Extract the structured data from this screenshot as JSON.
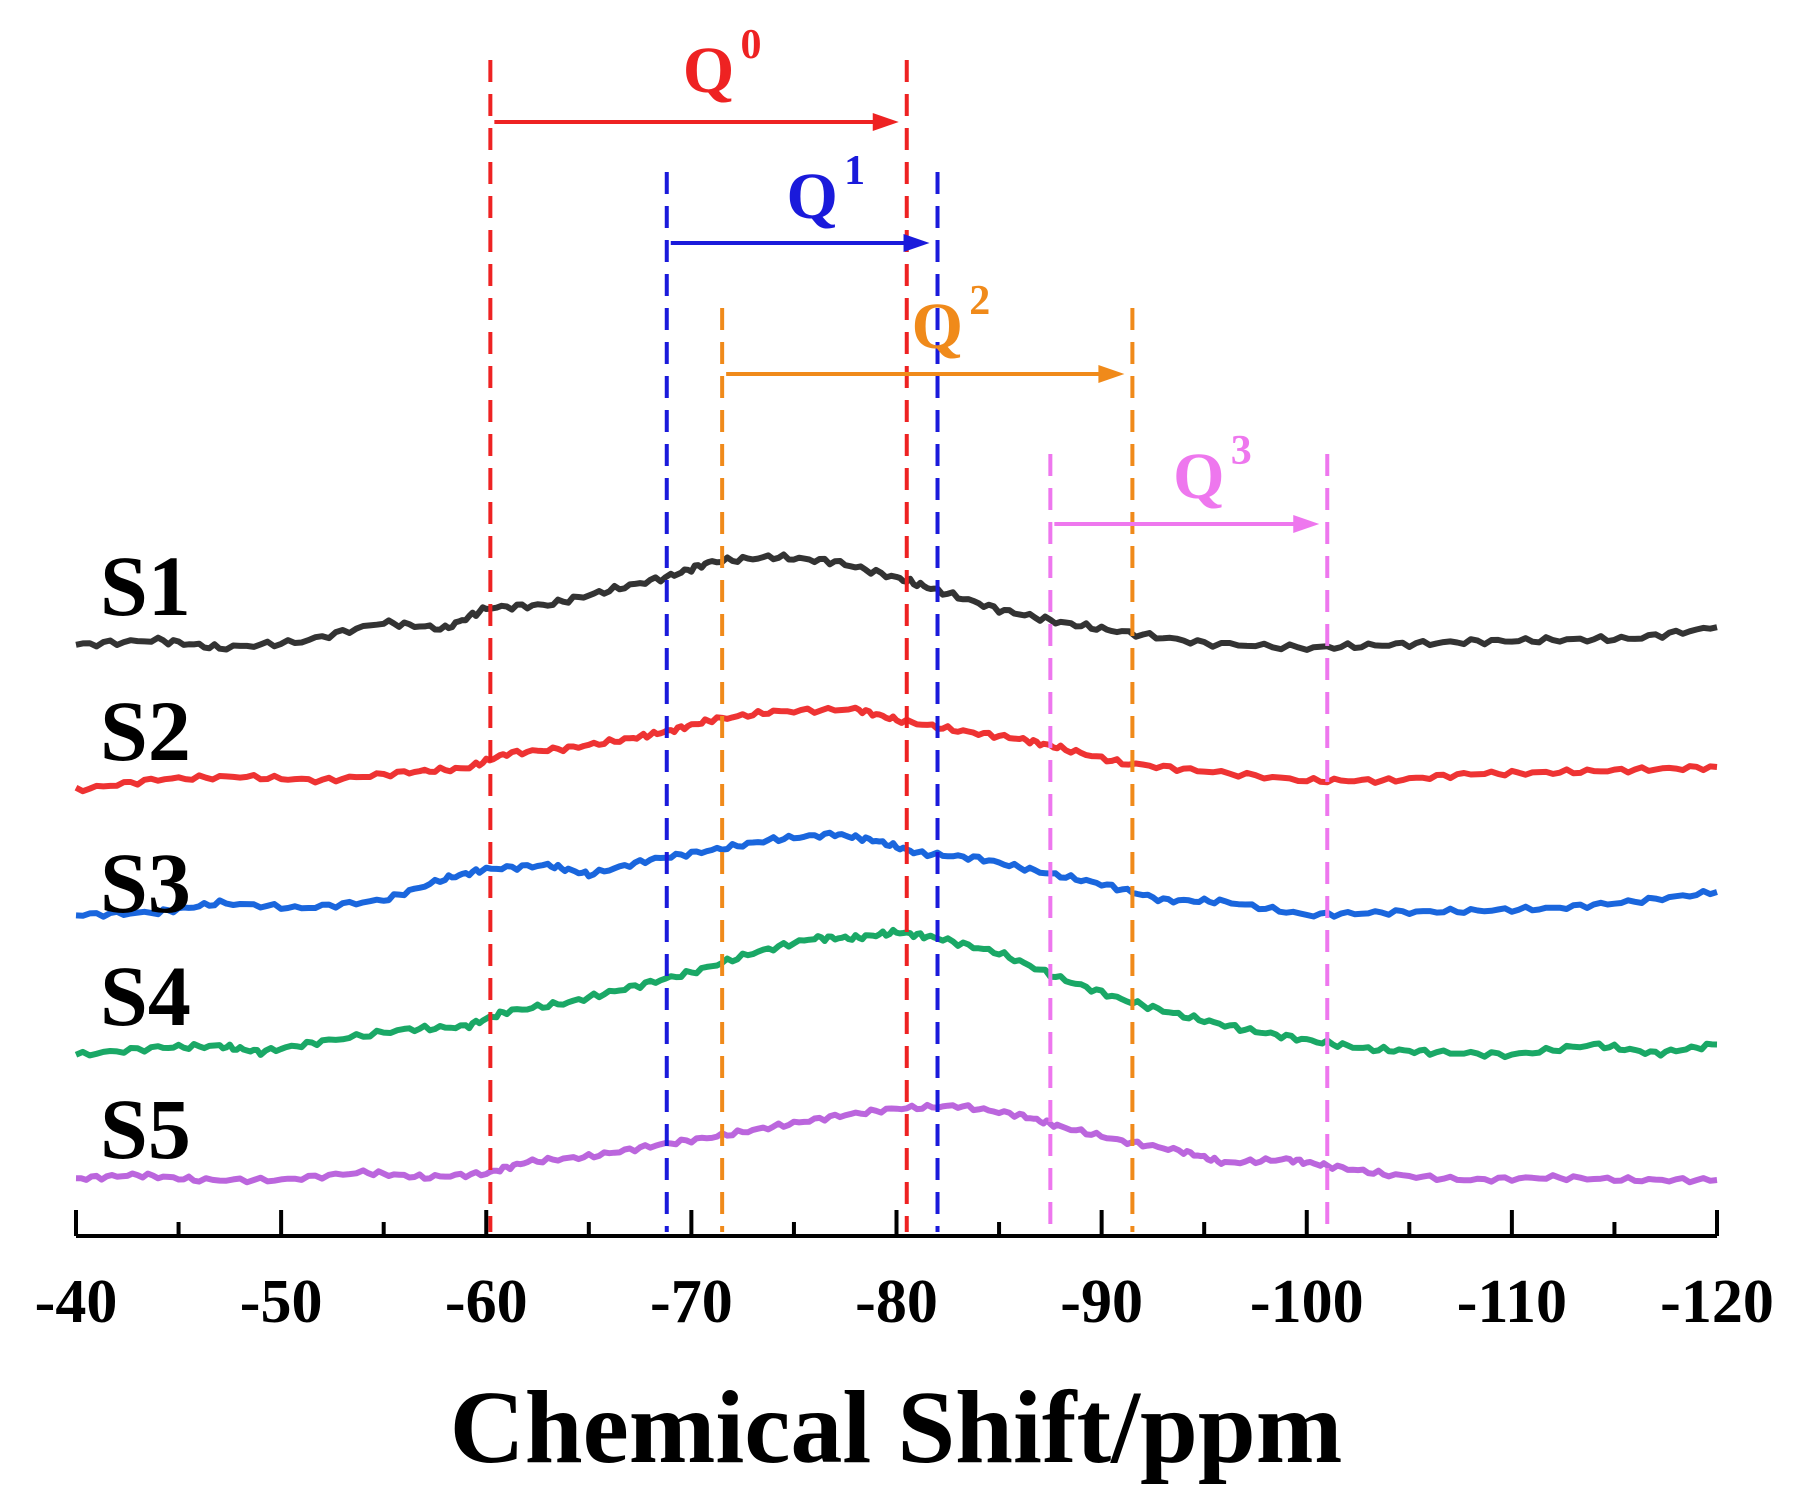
{
  "chart_data": {
    "type": "line",
    "xlabel": "Chemical Shift/ppm",
    "ylabel": "",
    "xlim": [
      -40,
      -120
    ],
    "x_ticks": [
      -40,
      -50,
      -60,
      -70,
      -80,
      -90,
      -100,
      -110,
      -120
    ],
    "x_tick_labels": [
      "-40",
      "-50",
      "-60",
      "-70",
      "-80",
      "-90",
      "-100",
      "-110",
      "-120"
    ],
    "series": [
      {
        "name": "S1",
        "color": "#333333",
        "points": [
          [
            -40,
            0.02
          ],
          [
            -44,
            0.05
          ],
          [
            -47,
            0.0
          ],
          [
            -51,
            0.04
          ],
          [
            -55,
            0.16
          ],
          [
            -58,
            0.12
          ],
          [
            -60,
            0.25
          ],
          [
            -63,
            0.27
          ],
          [
            -66,
            0.36
          ],
          [
            -69,
            0.45
          ],
          [
            -71,
            0.54
          ],
          [
            -74,
            0.57
          ],
          [
            -77,
            0.54
          ],
          [
            -80,
            0.44
          ],
          [
            -82,
            0.36
          ],
          [
            -85,
            0.24
          ],
          [
            -88,
            0.16
          ],
          [
            -91,
            0.1
          ],
          [
            -95,
            0.03
          ],
          [
            -100,
            0.0
          ],
          [
            -104,
            0.02
          ],
          [
            -108,
            0.04
          ],
          [
            -112,
            0.05
          ],
          [
            -116,
            0.06
          ],
          [
            -120,
            0.13
          ]
        ]
      },
      {
        "name": "S2",
        "color": "#ee3333",
        "points": [
          [
            -40,
            0.0
          ],
          [
            -44,
            0.08
          ],
          [
            -48,
            0.1
          ],
          [
            -52,
            0.07
          ],
          [
            -56,
            0.13
          ],
          [
            -59,
            0.16
          ],
          [
            -61,
            0.27
          ],
          [
            -64,
            0.31
          ],
          [
            -67,
            0.38
          ],
          [
            -69,
            0.44
          ],
          [
            -71,
            0.52
          ],
          [
            -74,
            0.58
          ],
          [
            -78,
            0.6
          ],
          [
            -80,
            0.52
          ],
          [
            -83,
            0.44
          ],
          [
            -86,
            0.38
          ],
          [
            -88,
            0.31
          ],
          [
            -91,
            0.2
          ],
          [
            -95,
            0.14
          ],
          [
            -100,
            0.07
          ],
          [
            -104,
            0.07
          ],
          [
            -108,
            0.12
          ],
          [
            -112,
            0.13
          ],
          [
            -116,
            0.15
          ],
          [
            -120,
            0.17
          ]
        ]
      },
      {
        "name": "S3",
        "color": "#1a66dd",
        "points": [
          [
            -40,
            0.0
          ],
          [
            -44,
            0.02
          ],
          [
            -47,
            0.09
          ],
          [
            -51,
            0.05
          ],
          [
            -55,
            0.11
          ],
          [
            -58,
            0.27
          ],
          [
            -60,
            0.34
          ],
          [
            -63,
            0.37
          ],
          [
            -65,
            0.3
          ],
          [
            -68,
            0.41
          ],
          [
            -71,
            0.48
          ],
          [
            -74,
            0.56
          ],
          [
            -77,
            0.6
          ],
          [
            -79,
            0.55
          ],
          [
            -81,
            0.46
          ],
          [
            -84,
            0.42
          ],
          [
            -87,
            0.32
          ],
          [
            -90,
            0.23
          ],
          [
            -93,
            0.11
          ],
          [
            -96,
            0.1
          ],
          [
            -100,
            0.0
          ],
          [
            -104,
            0.02
          ],
          [
            -108,
            0.03
          ],
          [
            -112,
            0.05
          ],
          [
            -116,
            0.1
          ],
          [
            -120,
            0.17
          ]
        ]
      },
      {
        "name": "S4",
        "color": "#1aa866",
        "points": [
          [
            -40,
            0.0
          ],
          [
            -44,
            0.05
          ],
          [
            -47,
            0.06
          ],
          [
            -49,
            0.02
          ],
          [
            -52,
            0.09
          ],
          [
            -56,
            0.17
          ],
          [
            -59,
            0.19
          ],
          [
            -61,
            0.29
          ],
          [
            -64,
            0.35
          ],
          [
            -67,
            0.45
          ],
          [
            -70,
            0.55
          ],
          [
            -73,
            0.68
          ],
          [
            -76,
            0.78
          ],
          [
            -78,
            0.78
          ],
          [
            -80,
            0.82
          ],
          [
            -82,
            0.78
          ],
          [
            -85,
            0.68
          ],
          [
            -88,
            0.51
          ],
          [
            -91,
            0.37
          ],
          [
            -94,
            0.26
          ],
          [
            -97,
            0.17
          ],
          [
            -100,
            0.1
          ],
          [
            -103,
            0.04
          ],
          [
            -106,
            0.02
          ],
          [
            -110,
            0.0
          ],
          [
            -114,
            0.07
          ],
          [
            -117,
            0.01
          ],
          [
            -120,
            0.07
          ]
        ]
      },
      {
        "name": "S5",
        "color": "#bb66dd",
        "points": [
          [
            -40,
            0.01
          ],
          [
            -43,
            0.04
          ],
          [
            -46,
            0.0
          ],
          [
            -50,
            0.0
          ],
          [
            -54,
            0.06
          ],
          [
            -57,
            0.02
          ],
          [
            -60,
            0.05
          ],
          [
            -62,
            0.14
          ],
          [
            -65,
            0.18
          ],
          [
            -68,
            0.26
          ],
          [
            -71,
            0.33
          ],
          [
            -74,
            0.41
          ],
          [
            -77,
            0.49
          ],
          [
            -80,
            0.55
          ],
          [
            -83,
            0.57
          ],
          [
            -86,
            0.5
          ],
          [
            -88,
            0.41
          ],
          [
            -91,
            0.3
          ],
          [
            -94,
            0.22
          ],
          [
            -96,
            0.13
          ],
          [
            -99,
            0.16
          ],
          [
            -101,
            0.11
          ],
          [
            -104,
            0.04
          ],
          [
            -108,
            0.0
          ],
          [
            -112,
            0.02
          ],
          [
            -116,
            0.0
          ],
          [
            -120,
            0.0
          ]
        ]
      }
    ],
    "annotations": [
      {
        "label": "Q",
        "sup": "0",
        "color": "#ee2222",
        "from": -60.2,
        "to": -80.5
      },
      {
        "label": "Q",
        "sup": "1",
        "color": "#1a1adb",
        "from": -68.8,
        "to": -82.0
      },
      {
        "label": "Q",
        "sup": "2",
        "color": "#f08a1a",
        "from": -71.5,
        "to": -91.5
      },
      {
        "label": "Q",
        "sup": "3",
        "color": "#ee77ee",
        "from": -87.5,
        "to": -101.0
      }
    ]
  }
}
